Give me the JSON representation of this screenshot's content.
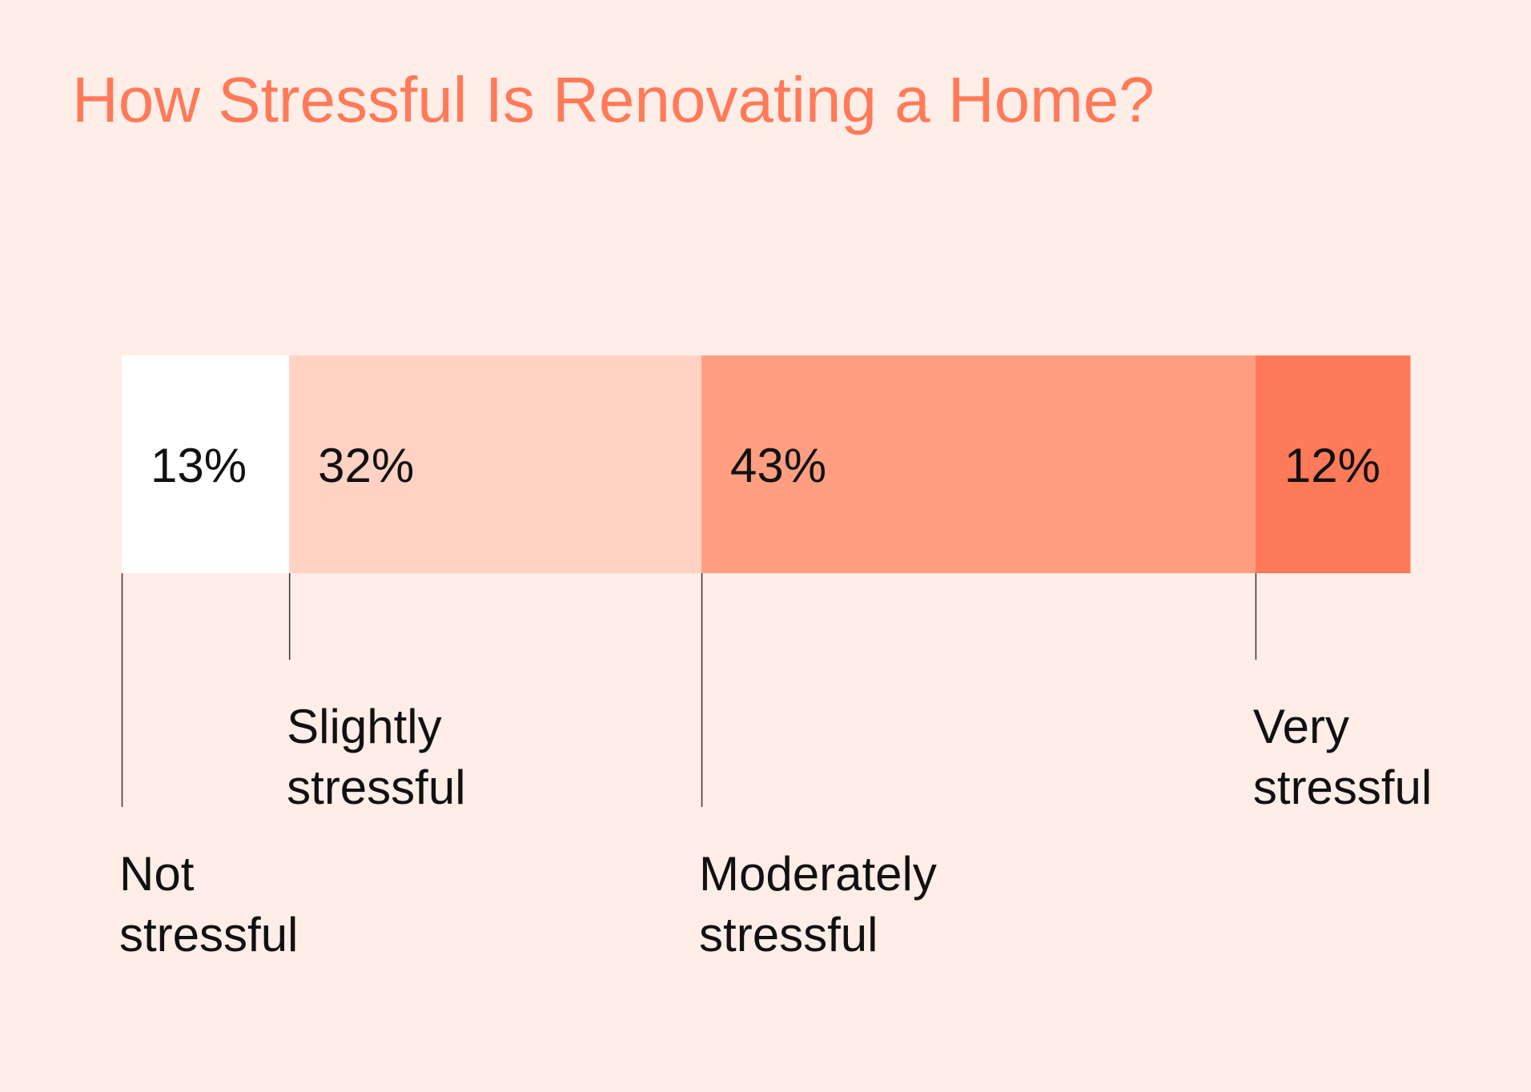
{
  "chart_data": {
    "type": "bar",
    "orientation": "horizontal-stacked",
    "title": "How Stressful Is Renovating a Home?",
    "unit": "%",
    "categories": [
      "Not stressful",
      "Slightly stressful",
      "Moderately stressful",
      "Very stressful"
    ],
    "label_lines": [
      [
        "Not",
        "stressful"
      ],
      [
        "Slightly",
        "stressful"
      ],
      [
        "Moderately",
        "stressful"
      ],
      [
        "Very",
        "stressful"
      ]
    ],
    "values": [
      13,
      32,
      43,
      12
    ],
    "value_labels": [
      "13%",
      "32%",
      "43%",
      "12%"
    ],
    "colors": [
      "#FFFFFF",
      "#FFD2C4",
      "#FF9E80",
      "#FF7A59"
    ],
    "xlim": [
      0,
      100
    ],
    "grid": false,
    "legend": "none"
  },
  "colors": {
    "background": "#FFEDE7",
    "title": "#FF7A59",
    "text": "#111111",
    "leader_line": "#333333"
  }
}
